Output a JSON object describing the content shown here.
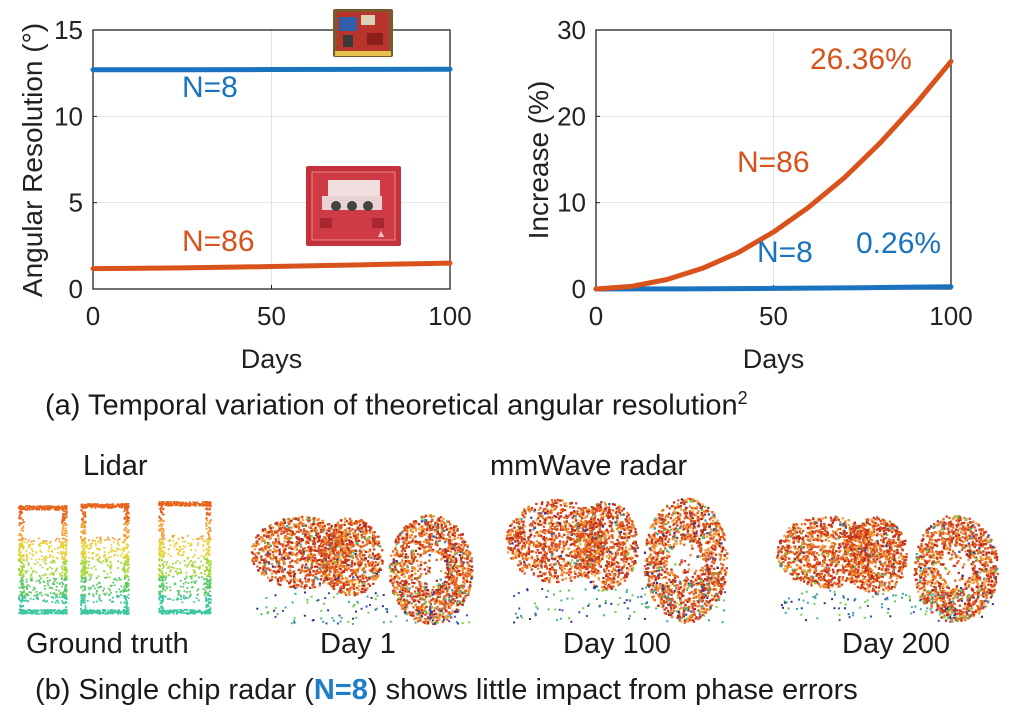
{
  "colors": {
    "n8": "#1a73be",
    "n86": "#d9521c",
    "axis": "#222222",
    "grid": "#e2e2e2"
  },
  "chart_data": [
    {
      "type": "line",
      "title": "",
      "xlabel": "Days",
      "ylabel": "Angular Resolution (°)",
      "xlim": [
        0,
        100
      ],
      "ylim": [
        0,
        15
      ],
      "xticks": [
        0,
        50,
        100
      ],
      "yticks": [
        0,
        5,
        10,
        15
      ],
      "grid": true,
      "series": [
        {
          "name": "N=8",
          "x": [
            0,
            25,
            50,
            75,
            100
          ],
          "y": [
            12.7,
            12.7,
            12.71,
            12.72,
            12.73
          ]
        },
        {
          "name": "N=86",
          "x": [
            0,
            25,
            50,
            75,
            100
          ],
          "y": [
            1.18,
            1.22,
            1.3,
            1.4,
            1.5
          ]
        }
      ],
      "annotations": [
        {
          "text": "N=8",
          "series": "N=8"
        },
        {
          "text": "N=86",
          "series": "N=86"
        }
      ]
    },
    {
      "type": "line",
      "title": "",
      "xlabel": "Days",
      "ylabel": "Increase (%)",
      "xlim": [
        0,
        100
      ],
      "ylim": [
        0,
        30
      ],
      "xticks": [
        0,
        50,
        100
      ],
      "yticks": [
        0,
        10,
        20,
        30
      ],
      "grid": true,
      "series": [
        {
          "name": "N=8",
          "x": [
            0,
            25,
            50,
            75,
            100
          ],
          "y": [
            0,
            0.02,
            0.07,
            0.15,
            0.26
          ]
        },
        {
          "name": "N=86",
          "x": [
            0,
            10,
            20,
            30,
            40,
            50,
            60,
            70,
            80,
            90,
            100
          ],
          "y": [
            0,
            0.3,
            1.1,
            2.4,
            4.2,
            6.6,
            9.5,
            12.9,
            16.9,
            21.4,
            26.36
          ]
        }
      ],
      "annotations": [
        {
          "text": "26.36%",
          "series": "N=86"
        },
        {
          "text": "N=86",
          "series": "N=86"
        },
        {
          "text": "N=8",
          "series": "N=8"
        },
        {
          "text": "0.26%",
          "series": "N=8"
        }
      ]
    }
  ],
  "captions": {
    "a": "(a) Temporal variation of theoretical angular resolution",
    "a_sup": "2",
    "b_pre": "(b) Single chip radar (",
    "b_bold": "N=8",
    "b_post": ") shows little impact from phase errors"
  },
  "labels": {
    "lidar": "Lidar",
    "mmwave": "mmWave radar",
    "ground_truth": "Ground truth",
    "day1": "Day 1",
    "day100": "Day 100",
    "day200": "Day 200"
  }
}
